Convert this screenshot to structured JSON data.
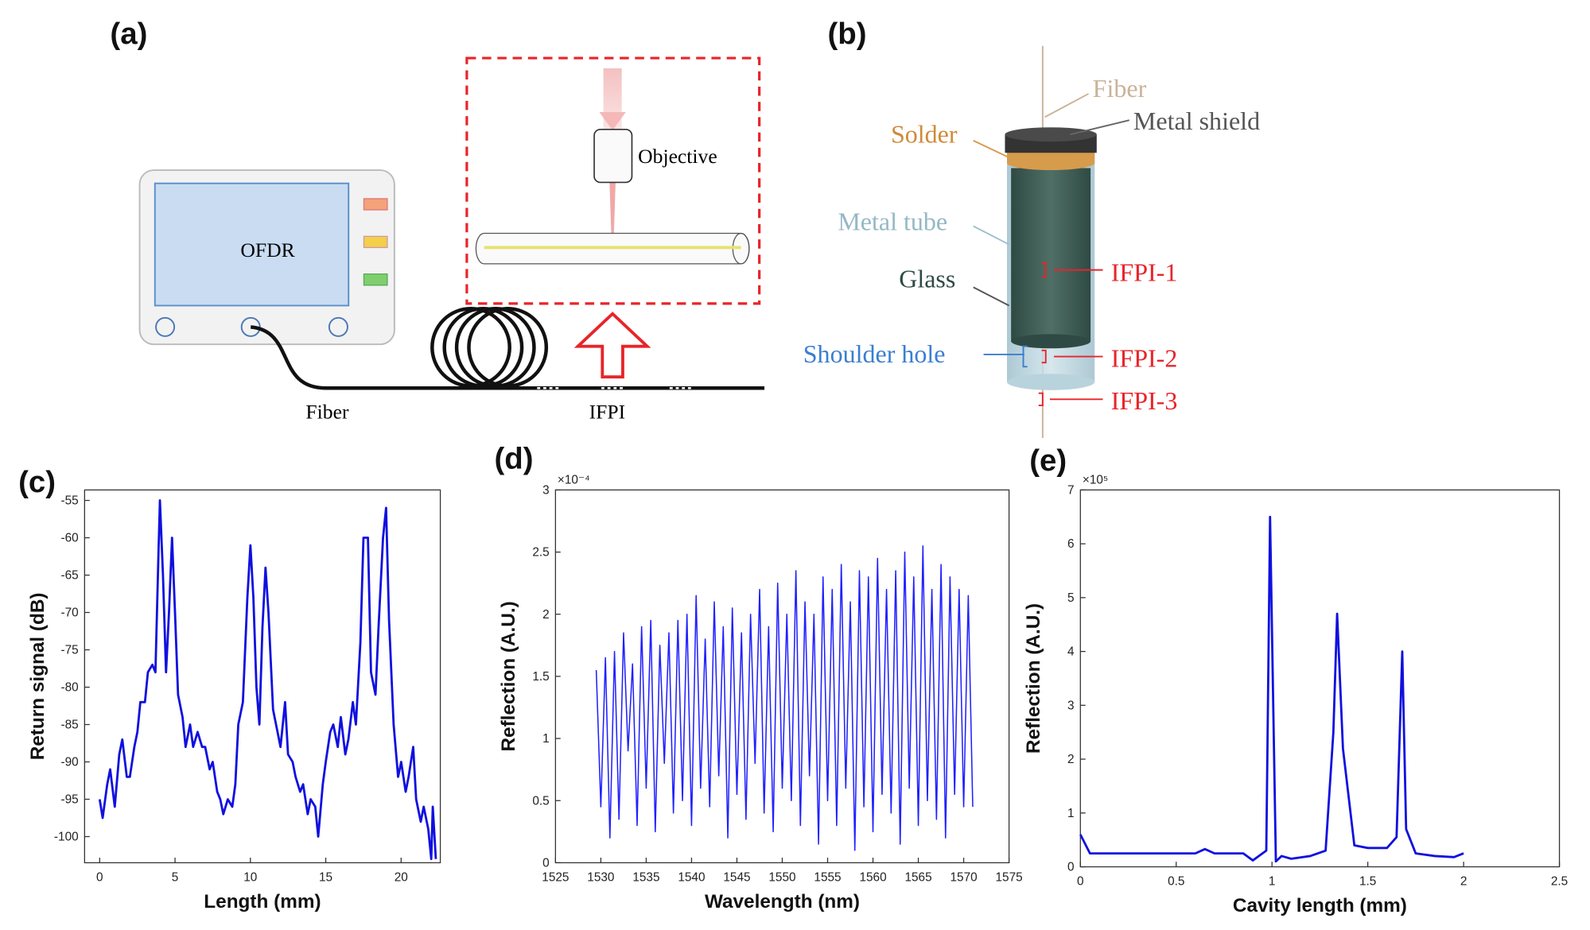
{
  "panel_labels": [
    "(a)",
    "(b)",
    "(c)",
    "(d)",
    "(e)"
  ],
  "diagram_a": {
    "device": "OFDR",
    "objective": "Objective",
    "fiber": "Fiber",
    "sensor": "IFPI"
  },
  "diagram_b": {
    "fiber": "Fiber",
    "metal_shield": "Metal shield",
    "solder": "Solder",
    "metal_tube": "Metal tube",
    "glass": "Glass",
    "shoulder_hole": "Shoulder hole",
    "ifpi_1": "IFPI-1",
    "ifpi_2": "IFPI-2",
    "ifpi_3": "IFPI-3"
  },
  "chart_data": [
    {
      "type": "line",
      "x_label": "Length (mm)",
      "y_label": "Return signal (dB)",
      "color": "#1010e0",
      "xlim": [
        -1,
        22.6
      ],
      "ylim": [
        -103.5,
        -53.6
      ],
      "xticks": [
        0,
        5,
        10,
        15,
        20
      ],
      "yticks": [
        -100,
        -95,
        -90,
        -85,
        -80,
        -75,
        -70,
        -65,
        -60,
        -55
      ],
      "x": [
        0,
        0.2,
        0.5,
        0.7,
        1,
        1.3,
        1.5,
        1.8,
        2,
        2.3,
        2.5,
        2.7,
        3,
        3.2,
        3.5,
        3.7,
        3.9,
        4,
        4.2,
        4.4,
        4.6,
        4.8,
        5,
        5.2,
        5.5,
        5.7,
        6,
        6.2,
        6.5,
        6.8,
        7,
        7.3,
        7.5,
        7.8,
        8,
        8.2,
        8.5,
        8.8,
        9,
        9.2,
        9.5,
        9.8,
        10,
        10.2,
        10.4,
        10.6,
        10.8,
        11,
        11.2,
        11.5,
        11.8,
        12,
        12.3,
        12.5,
        12.8,
        13,
        13.3,
        13.5,
        13.8,
        14,
        14.3,
        14.5,
        14.8,
        15,
        15.3,
        15.5,
        15.8,
        16,
        16.3,
        16.5,
        16.8,
        17,
        17.3,
        17.5,
        17.8,
        18,
        18.3,
        18.5,
        18.8,
        19,
        19.2,
        19.5,
        19.8,
        20,
        20.3,
        20.5,
        20.8,
        21,
        21.3,
        21.5,
        21.8,
        22,
        22.1,
        22.3
      ],
      "values": [
        -95,
        -97.5,
        -93,
        -91,
        -96,
        -89,
        -87,
        -92,
        -92,
        -88,
        -86,
        -82,
        -82,
        -78,
        -77,
        -78,
        -62,
        -55,
        -65,
        -78,
        -70,
        -60,
        -70,
        -81,
        -84,
        -88,
        -85,
        -88,
        -86,
        -88,
        -88,
        -91,
        -90,
        -94,
        -95,
        -97,
        -95,
        -96,
        -93,
        -85,
        -82,
        -68,
        -61,
        -68,
        -80,
        -85,
        -72,
        -64,
        -70,
        -83,
        -86,
        -88,
        -82,
        -89,
        -90,
        -92,
        -94,
        -93,
        -97,
        -95,
        -96,
        -100,
        -93,
        -90,
        -86,
        -85,
        -88,
        -84,
        -89,
        -87,
        -82,
        -85,
        -74,
        -60,
        -60,
        -78,
        -81,
        -72,
        -60,
        -56,
        -71,
        -85,
        -92,
        -90,
        -94,
        -92,
        -88,
        -95,
        -98,
        -96,
        -99,
        -103,
        -96,
        -103
      ]
    },
    {
      "type": "line",
      "x_label": "Wavelength (nm)",
      "y_label": "Reflection (A.U.)",
      "y_exponent_label": "×10⁻⁴",
      "color": "#2020ff",
      "xlim": [
        1525,
        1575
      ],
      "ylim": [
        0,
        3
      ],
      "xticks": [
        1525,
        1530,
        1535,
        1540,
        1545,
        1550,
        1555,
        1560,
        1565,
        1570,
        1575
      ],
      "yticks": [
        0,
        0.5,
        1,
        1.5,
        2,
        2.5,
        3
      ],
      "x": [
        1529.5,
        1530,
        1530.5,
        1531,
        1531.5,
        1532,
        1532.5,
        1533,
        1533.5,
        1534,
        1534.5,
        1535,
        1535.5,
        1536,
        1536.5,
        1537,
        1537.5,
        1538,
        1538.5,
        1539,
        1539.5,
        1540,
        1540.5,
        1541,
        1541.5,
        1542,
        1542.5,
        1543,
        1543.5,
        1544,
        1544.5,
        1545,
        1545.5,
        1546,
        1546.5,
        1547,
        1547.5,
        1548,
        1548.5,
        1549,
        1549.5,
        1550,
        1550.5,
        1551,
        1551.5,
        1552,
        1552.5,
        1553,
        1553.5,
        1554,
        1554.5,
        1555,
        1555.5,
        1556,
        1556.5,
        1557,
        1557.5,
        1558,
        1558.5,
        1559,
        1559.5,
        1560,
        1560.5,
        1561,
        1561.5,
        1562,
        1562.5,
        1563,
        1563.5,
        1564,
        1564.5,
        1565,
        1565.5,
        1566,
        1566.5,
        1567,
        1567.5,
        1568,
        1568.5,
        1569,
        1569.5,
        1570,
        1570.5,
        1571
      ],
      "values": [
        1.55,
        0.45,
        1.65,
        0.2,
        1.7,
        0.35,
        1.85,
        0.9,
        1.6,
        0.3,
        1.9,
        0.6,
        1.95,
        0.25,
        1.75,
        0.8,
        1.85,
        0.4,
        1.95,
        0.5,
        2.0,
        0.3,
        2.15,
        0.6,
        1.8,
        0.45,
        2.1,
        0.7,
        1.9,
        0.2,
        2.05,
        0.55,
        1.85,
        0.35,
        2.0,
        0.8,
        2.2,
        0.4,
        1.9,
        0.25,
        2.25,
        0.6,
        2.0,
        0.5,
        2.35,
        0.3,
        2.1,
        0.7,
        2.0,
        0.15,
        2.3,
        0.5,
        2.2,
        0.3,
        2.4,
        0.6,
        2.1,
        0.1,
        2.35,
        0.45,
        2.3,
        0.25,
        2.45,
        0.55,
        2.2,
        0.4,
        2.35,
        0.15,
        2.5,
        0.6,
        2.3,
        0.3,
        2.55,
        0.5,
        2.2,
        0.35,
        2.4,
        0.2,
        2.3,
        0.55,
        2.2,
        0.45,
        2.15,
        0.45
      ]
    },
    {
      "type": "line",
      "x_label": "Cavity length (mm)",
      "y_label": "Reflection (A.U.)",
      "y_exponent_label": "×10⁵",
      "color": "#1010e0",
      "xlim": [
        0,
        2.5
      ],
      "ylim": [
        0,
        7
      ],
      "xticks": [
        0,
        0.5,
        1,
        1.5,
        2,
        2.5
      ],
      "yticks": [
        0,
        1,
        2,
        3,
        4,
        5,
        6,
        7
      ],
      "x": [
        0,
        0.05,
        0.2,
        0.4,
        0.6,
        0.65,
        0.7,
        0.85,
        0.9,
        0.97,
        0.99,
        1.02,
        1.05,
        1.1,
        1.2,
        1.28,
        1.32,
        1.34,
        1.37,
        1.43,
        1.5,
        1.6,
        1.65,
        1.68,
        1.7,
        1.75,
        1.85,
        1.95,
        2.0
      ],
      "values": [
        0.6,
        0.25,
        0.25,
        0.25,
        0.25,
        0.33,
        0.25,
        0.25,
        0.12,
        0.3,
        6.5,
        0.1,
        0.2,
        0.15,
        0.2,
        0.3,
        2.5,
        4.7,
        2.2,
        0.4,
        0.35,
        0.35,
        0.55,
        4.0,
        0.7,
        0.25,
        0.2,
        0.18,
        0.25
      ]
    }
  ]
}
